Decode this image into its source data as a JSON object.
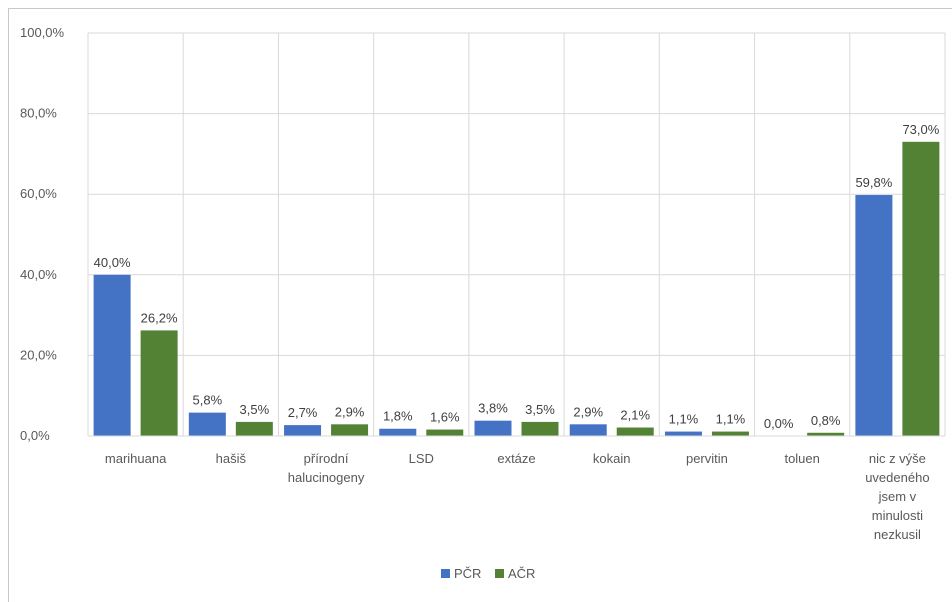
{
  "chart_data": {
    "type": "bar",
    "title": "",
    "xlabel": "",
    "ylabel": "",
    "ylim": [
      0,
      100
    ],
    "yticks": [
      "0,0%",
      "20,0%",
      "40,0%",
      "60,0%",
      "80,0%",
      "100,0%"
    ],
    "yticks_values": [
      0,
      20,
      40,
      60,
      80,
      100
    ],
    "grid": true,
    "legend_position": "bottom",
    "categories": [
      [
        "marihuana"
      ],
      [
        "hašiš"
      ],
      [
        "přírodní",
        "halucinogeny"
      ],
      [
        "LSD"
      ],
      [
        "extáze"
      ],
      [
        "kokain"
      ],
      [
        "pervitin"
      ],
      [
        "toluen"
      ],
      [
        "nic z výše",
        "uvedeného",
        "jsem v",
        "minulosti",
        "nezkusil"
      ]
    ],
    "series": [
      {
        "name": "PČR",
        "color": "#4472c4",
        "values": [
          40.0,
          5.8,
          2.7,
          1.8,
          3.8,
          2.9,
          1.1,
          0.0,
          59.8
        ],
        "labels": [
          "40,0%",
          "5,8%",
          "2,7%",
          "1,8%",
          "3,8%",
          "2,9%",
          "1,1%",
          "0,0%",
          "59,8%"
        ]
      },
      {
        "name": "AČR",
        "color": "#548235",
        "values": [
          26.2,
          3.5,
          2.9,
          1.6,
          3.5,
          2.1,
          1.1,
          0.8,
          73.0
        ],
        "labels": [
          "26,2%",
          "3,5%",
          "2,9%",
          "1,6%",
          "3,5%",
          "2,1%",
          "1,1%",
          "0,8%",
          "73,0%"
        ]
      }
    ]
  }
}
